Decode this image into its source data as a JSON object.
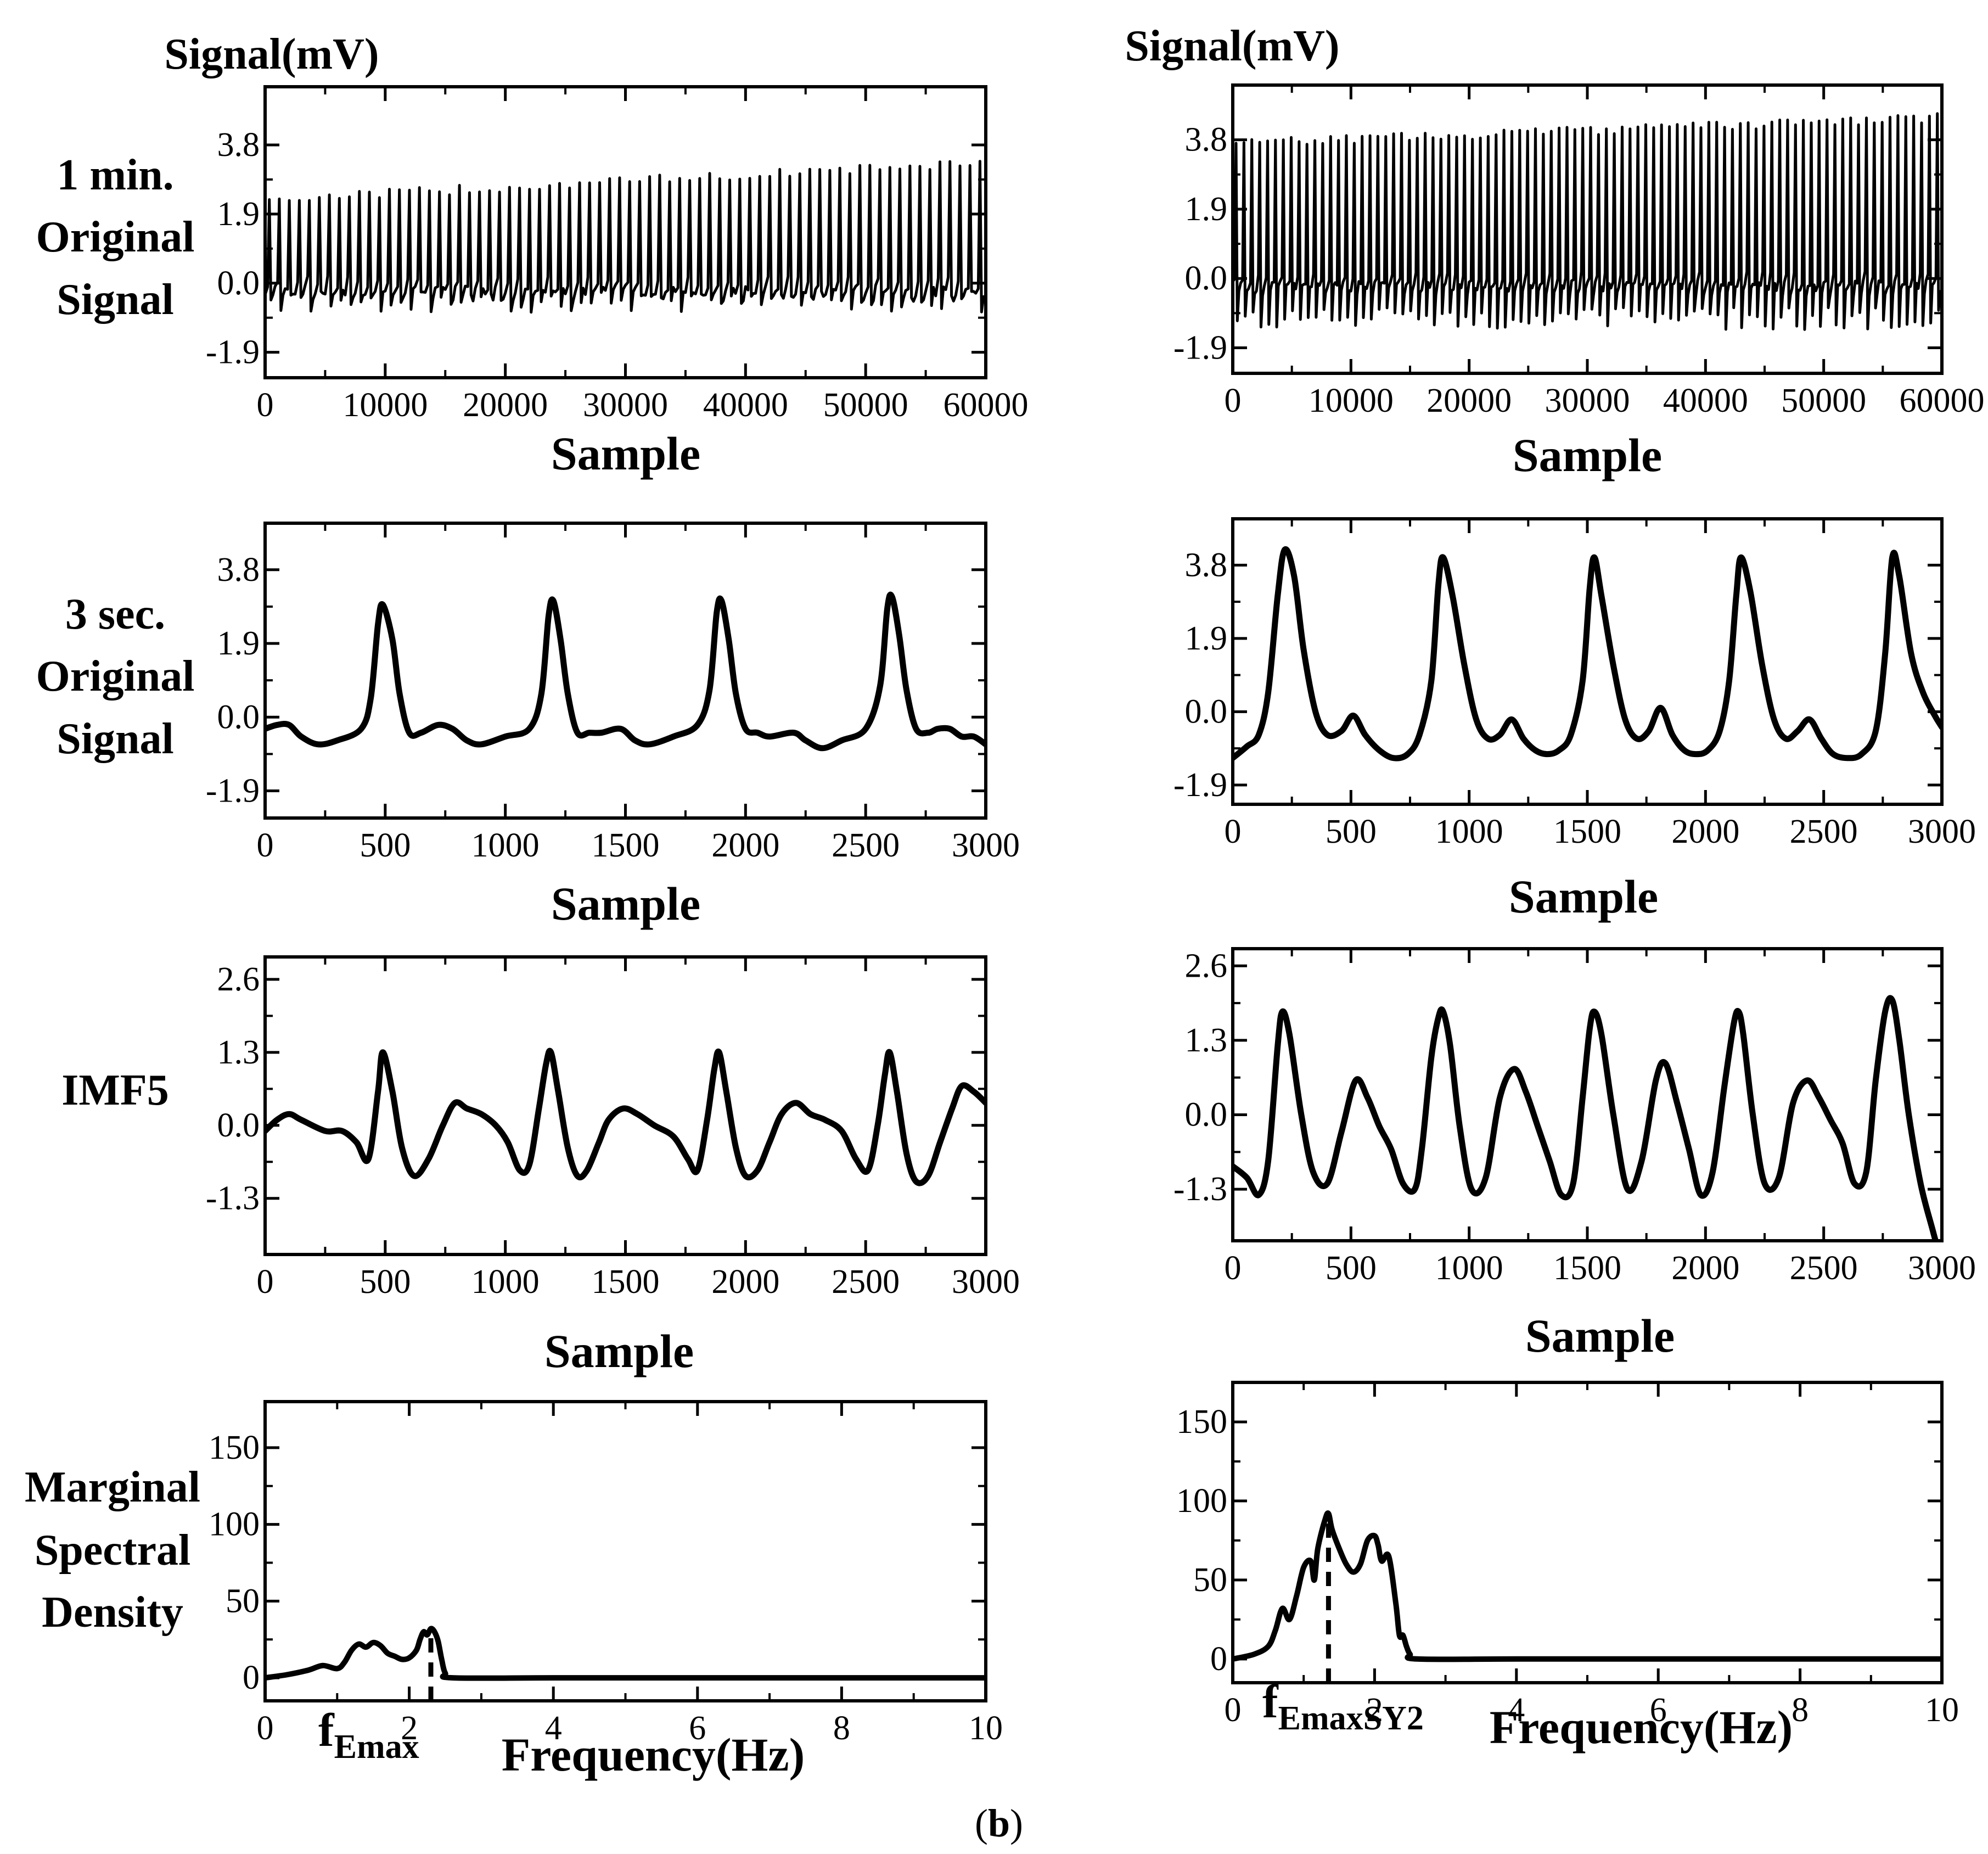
{
  "figure": {
    "caption_label": "b",
    "caption": "(b)"
  },
  "chart_data": [
    {
      "id": "left-row1",
      "type": "line",
      "ylabel": "Signal(mV)",
      "row_label": [
        "1 min.",
        "Original",
        "Signal"
      ],
      "xlabel": "Sample",
      "xlim": [
        0,
        60000
      ],
      "ylim": [
        -2.6,
        5.4
      ],
      "xticks": [
        0,
        10000,
        20000,
        30000,
        40000,
        50000,
        60000
      ],
      "xtick_labels": [
        "0",
        "10000",
        "20000",
        "30000",
        "40000",
        "50000",
        "60000"
      ],
      "yticks": [
        3.8,
        1.9,
        0.0,
        -1.9
      ],
      "ytick_labels": [
        "3.8",
        "1.9",
        "0.0",
        "-1.9"
      ],
      "signal": {
        "kind": "dense_ecg",
        "n_beats": 72,
        "peak_start": 2.3,
        "peak_end": 3.3,
        "trough": -0.5
      }
    },
    {
      "id": "right-row1",
      "type": "line",
      "ylabel": "Signal(mV)",
      "xlabel": "Sample",
      "xlim": [
        0,
        60000
      ],
      "ylim": [
        -2.6,
        5.3
      ],
      "xticks": [
        0,
        10000,
        20000,
        30000,
        40000,
        50000,
        60000
      ],
      "xtick_labels": [
        "0",
        "10000",
        "20000",
        "30000",
        "40000",
        "50000",
        "60000"
      ],
      "yticks": [
        3.8,
        1.9,
        0.0,
        -1.9
      ],
      "ytick_labels": [
        "3.8",
        "1.9",
        "0.0",
        "-1.9"
      ],
      "signal": {
        "kind": "dense_ecg",
        "n_beats": 90,
        "peak_start": 3.7,
        "peak_end": 4.4,
        "trough": -1.1
      }
    },
    {
      "id": "left-row2",
      "type": "line",
      "row_label": [
        "3 sec.",
        "Original",
        "Signal"
      ],
      "xlabel": "Sample",
      "xlim": [
        0,
        3000
      ],
      "ylim": [
        -2.6,
        5.0
      ],
      "xticks": [
        0,
        500,
        1000,
        1500,
        2000,
        2500,
        3000
      ],
      "xtick_labels": [
        "0",
        "500",
        "1000",
        "1500",
        "2000",
        "2500",
        "3000"
      ],
      "yticks": [
        3.8,
        1.9,
        0.0,
        -1.9
      ],
      "ytick_labels": [
        "3.8",
        "1.9",
        "0.0",
        "-1.9"
      ],
      "series": [
        {
          "name": "3 sec. Original Signal",
          "x": [
            0,
            50,
            100,
            150,
            220,
            300,
            400,
            440,
            470,
            490,
            530,
            560,
            600,
            650,
            720,
            780,
            840,
            900,
            1000,
            1100,
            1150,
            1180,
            1200,
            1230,
            1260,
            1300,
            1350,
            1400,
            1480,
            1540,
            1600,
            1700,
            1800,
            1850,
            1880,
            1900,
            1930,
            1960,
            2000,
            2050,
            2100,
            2200,
            2250,
            2320,
            2400,
            2500,
            2560,
            2590,
            2610,
            2640,
            2670,
            2710,
            2760,
            2800,
            2850,
            2900,
            2950,
            3000
          ],
          "y": [
            -0.3,
            -0.2,
            -0.2,
            -0.5,
            -0.7,
            -0.6,
            -0.3,
            0.5,
            2.4,
            2.9,
            2.0,
            0.6,
            -0.4,
            -0.4,
            -0.2,
            -0.3,
            -0.6,
            -0.7,
            -0.5,
            -0.3,
            0.6,
            2.6,
            3.0,
            2.0,
            0.6,
            -0.4,
            -0.4,
            -0.4,
            -0.3,
            -0.6,
            -0.7,
            -0.5,
            -0.2,
            0.7,
            2.7,
            3.0,
            2.0,
            0.6,
            -0.3,
            -0.4,
            -0.5,
            -0.4,
            -0.6,
            -0.8,
            -0.6,
            -0.3,
            0.8,
            2.8,
            3.1,
            2.1,
            0.7,
            -0.3,
            -0.4,
            -0.3,
            -0.3,
            -0.5,
            -0.5,
            -0.7
          ]
        }
      ]
    },
    {
      "id": "right-row2",
      "type": "line",
      "xlabel": "Sample",
      "xlim": [
        0,
        3000
      ],
      "ylim": [
        -2.4,
        5.0
      ],
      "xticks": [
        0,
        500,
        1000,
        1500,
        2000,
        2500,
        3000
      ],
      "xtick_labels": [
        "0",
        "500",
        "1000",
        "1500",
        "2000",
        "2500",
        "3000"
      ],
      "yticks": [
        3.8,
        1.9,
        0.0,
        -1.9
      ],
      "ytick_labels": [
        "3.8",
        "1.9",
        "0.0",
        "-1.9"
      ],
      "series": [
        {
          "name": "3 sec. Original Signal",
          "x": [
            0,
            60,
            110,
            150,
            190,
            220,
            260,
            300,
            350,
            400,
            460,
            510,
            560,
            620,
            680,
            740,
            790,
            840,
            870,
            890,
            930,
            980,
            1030,
            1080,
            1130,
            1180,
            1230,
            1280,
            1330,
            1380,
            1430,
            1480,
            1510,
            1530,
            1560,
            1610,
            1660,
            1710,
            1760,
            1810,
            1860,
            1910,
            1960,
            2010,
            2060,
            2100,
            2130,
            2150,
            2190,
            2240,
            2290,
            2340,
            2390,
            2440,
            2490,
            2540,
            2600,
            2660,
            2720,
            2760,
            2790,
            2820,
            2870,
            2920,
            2970,
            3000
          ],
          "y": [
            -1.2,
            -0.9,
            -0.6,
            0.5,
            3.0,
            4.2,
            3.5,
            1.6,
            0.0,
            -0.6,
            -0.5,
            -0.1,
            -0.6,
            -1.0,
            -1.2,
            -1.1,
            -0.6,
            0.8,
            3.3,
            4.0,
            3.0,
            1.2,
            -0.2,
            -0.7,
            -0.6,
            -0.2,
            -0.7,
            -1.0,
            -1.1,
            -1.0,
            -0.6,
            0.8,
            3.2,
            4.0,
            3.0,
            1.2,
            -0.2,
            -0.7,
            -0.5,
            0.1,
            -0.6,
            -1.0,
            -1.1,
            -1.0,
            -0.5,
            0.8,
            3.0,
            4.0,
            3.1,
            1.2,
            -0.2,
            -0.7,
            -0.5,
            -0.2,
            -0.7,
            -1.1,
            -1.2,
            -1.1,
            -0.5,
            1.5,
            4.0,
            3.5,
            1.5,
            0.5,
            -0.1,
            -0.4
          ]
        }
      ]
    },
    {
      "id": "left-row3",
      "type": "line",
      "row_label": [
        "IMF5"
      ],
      "xlabel": "Sample",
      "xlim": [
        0,
        3000
      ],
      "ylim": [
        -2.3,
        3.0
      ],
      "xticks": [
        0,
        500,
        1000,
        1500,
        2000,
        2500,
        3000
      ],
      "xtick_labels": [
        "0",
        "500",
        "1000",
        "1500",
        "2000",
        "2500",
        "3000"
      ],
      "yticks": [
        2.6,
        1.3,
        0.0,
        -1.3
      ],
      "ytick_labels": [
        "2.6",
        "1.3",
        "0.0",
        "-1.3"
      ],
      "series": [
        {
          "name": "IMF5",
          "x": [
            0,
            50,
            100,
            150,
            250,
            320,
            380,
            430,
            470,
            490,
            530,
            570,
            620,
            680,
            740,
            790,
            840,
            900,
            960,
            1010,
            1060,
            1100,
            1140,
            1170,
            1190,
            1220,
            1260,
            1300,
            1340,
            1390,
            1430,
            1490,
            1550,
            1620,
            1700,
            1760,
            1800,
            1840,
            1870,
            1890,
            1920,
            1960,
            2000,
            2050,
            2100,
            2150,
            2210,
            2270,
            2330,
            2400,
            2460,
            2510,
            2550,
            2580,
            2600,
            2630,
            2670,
            2710,
            2760,
            2810,
            2860,
            2900,
            2950,
            3000
          ],
          "y": [
            -0.1,
            0.1,
            0.2,
            0.1,
            -0.1,
            -0.1,
            -0.3,
            -0.6,
            0.6,
            1.3,
            0.6,
            -0.4,
            -0.9,
            -0.6,
            0.0,
            0.4,
            0.3,
            0.2,
            0.0,
            -0.3,
            -0.8,
            -0.7,
            0.3,
            1.1,
            1.3,
            0.6,
            -0.4,
            -0.9,
            -0.8,
            -0.3,
            0.1,
            0.3,
            0.2,
            0.0,
            -0.2,
            -0.6,
            -0.8,
            0.1,
            1.0,
            1.3,
            0.6,
            -0.4,
            -0.9,
            -0.8,
            -0.3,
            0.2,
            0.4,
            0.2,
            0.1,
            -0.1,
            -0.6,
            -0.8,
            0.0,
            0.9,
            1.3,
            0.6,
            -0.5,
            -1.0,
            -0.9,
            -0.3,
            0.3,
            0.7,
            0.6,
            0.4
          ]
        }
      ]
    },
    {
      "id": "right-row3",
      "type": "line",
      "xlabel": "Sample",
      "xlim": [
        0,
        3000
      ],
      "ylim": [
        -2.2,
        2.9
      ],
      "xticks": [
        0,
        500,
        1000,
        1500,
        2000,
        2500,
        3000
      ],
      "xtick_labels": [
        "0",
        "500",
        "1000",
        "1500",
        "2000",
        "2500",
        "3000"
      ],
      "yticks": [
        2.6,
        1.3,
        0.0,
        -1.3
      ],
      "ytick_labels": [
        "2.6",
        "1.3",
        "0.0",
        "-1.3"
      ],
      "series": [
        {
          "name": "IMF5",
          "x": [
            0,
            60,
            110,
            150,
            190,
            210,
            240,
            290,
            340,
            400,
            460,
            520,
            570,
            620,
            670,
            720,
            770,
            800,
            840,
            870,
            890,
            920,
            960,
            1010,
            1070,
            1130,
            1190,
            1240,
            1290,
            1340,
            1390,
            1440,
            1480,
            1510,
            1530,
            1560,
            1610,
            1670,
            1730,
            1790,
            1830,
            1880,
            1930,
            1980,
            2030,
            2080,
            2120,
            2140,
            2160,
            2200,
            2250,
            2310,
            2370,
            2430,
            2480,
            2530,
            2580,
            2630,
            2680,
            2720,
            2760,
            2790,
            2820,
            2860,
            2910,
            2960,
            3000
          ],
          "y": [
            -0.9,
            -1.1,
            -1.4,
            -0.8,
            1.2,
            1.8,
            1.4,
            0.0,
            -1.0,
            -1.2,
            -0.3,
            0.6,
            0.3,
            -0.2,
            -0.6,
            -1.2,
            -1.3,
            -0.6,
            1.0,
            1.7,
            1.8,
            1.2,
            -0.2,
            -1.3,
            -1.1,
            0.3,
            0.8,
            0.4,
            -0.2,
            -0.8,
            -1.4,
            -1.2,
            0.3,
            1.5,
            1.8,
            1.4,
            0.0,
            -1.3,
            -0.8,
            0.6,
            0.9,
            0.2,
            -0.6,
            -1.4,
            -1.0,
            0.5,
            1.6,
            1.8,
            1.4,
            0.0,
            -1.2,
            -1.1,
            0.2,
            0.6,
            0.3,
            -0.1,
            -0.5,
            -1.2,
            -1.0,
            0.6,
            1.8,
            2.0,
            1.3,
            0.0,
            -1.2,
            -2.0,
            -2.6
          ]
        }
      ]
    },
    {
      "id": "left-row4",
      "type": "line",
      "row_label": [
        "Marginal",
        "Spectral",
        "Density"
      ],
      "xlabel": "Frequency(Hz)",
      "xlim": [
        0,
        10
      ],
      "ylim": [
        -15,
        180
      ],
      "xticks": [
        0,
        2,
        4,
        6,
        8,
        10
      ],
      "xtick_labels": [
        "0",
        "2",
        "4",
        "6",
        "8",
        "10"
      ],
      "yticks": [
        150,
        100,
        50,
        0
      ],
      "ytick_labels": [
        "150",
        "100",
        "50",
        "0"
      ],
      "marker": {
        "x": 2.3,
        "label_main": "f",
        "label_sub": "Emax"
      },
      "series": [
        {
          "name": "Marginal Spectral Density",
          "x": [
            0,
            0.3,
            0.6,
            0.8,
            1.0,
            1.1,
            1.2,
            1.3,
            1.4,
            1.5,
            1.6,
            1.7,
            1.8,
            1.9,
            2.0,
            2.1,
            2.15,
            2.2,
            2.25,
            2.3,
            2.35,
            2.4,
            2.45,
            2.5,
            2.6,
            4.0,
            6.0,
            8.0,
            10.0
          ],
          "y": [
            0,
            2,
            5,
            8,
            6,
            10,
            18,
            22,
            20,
            23,
            21,
            16,
            14,
            12,
            13,
            18,
            25,
            30,
            28,
            32,
            30,
            24,
            12,
            3,
            0,
            0,
            0,
            0,
            0
          ]
        }
      ]
    },
    {
      "id": "right-row4",
      "type": "line",
      "xlabel": "Frequency(Hz)",
      "xlim": [
        0,
        10
      ],
      "ylim": [
        -15,
        175
      ],
      "xticks": [
        0,
        2,
        4,
        6,
        8,
        10
      ],
      "xtick_labels": [
        "0",
        "2",
        "4",
        "6",
        "8",
        "10"
      ],
      "yticks": [
        150,
        100,
        50,
        0
      ],
      "ytick_labels": [
        "150",
        "100",
        "50",
        "0"
      ],
      "marker": {
        "x": 1.35,
        "label_main": "f",
        "label_sub": "EmaxSY2"
      },
      "series": [
        {
          "name": "Marginal Spectral Density",
          "x": [
            0,
            0.3,
            0.5,
            0.6,
            0.7,
            0.8,
            0.9,
            1.0,
            1.1,
            1.15,
            1.2,
            1.3,
            1.35,
            1.4,
            1.5,
            1.6,
            1.7,
            1.8,
            1.9,
            2.0,
            2.05,
            2.1,
            2.2,
            2.3,
            2.35,
            2.4,
            2.45,
            2.5,
            2.6,
            4.0,
            6.0,
            8.0,
            10.0
          ],
          "y": [
            0,
            3,
            8,
            18,
            32,
            25,
            40,
            58,
            62,
            50,
            70,
            88,
            92,
            82,
            70,
            60,
            55,
            60,
            75,
            78,
            72,
            62,
            65,
            35,
            15,
            15,
            8,
            3,
            0,
            0,
            0,
            0,
            0
          ]
        }
      ]
    }
  ]
}
